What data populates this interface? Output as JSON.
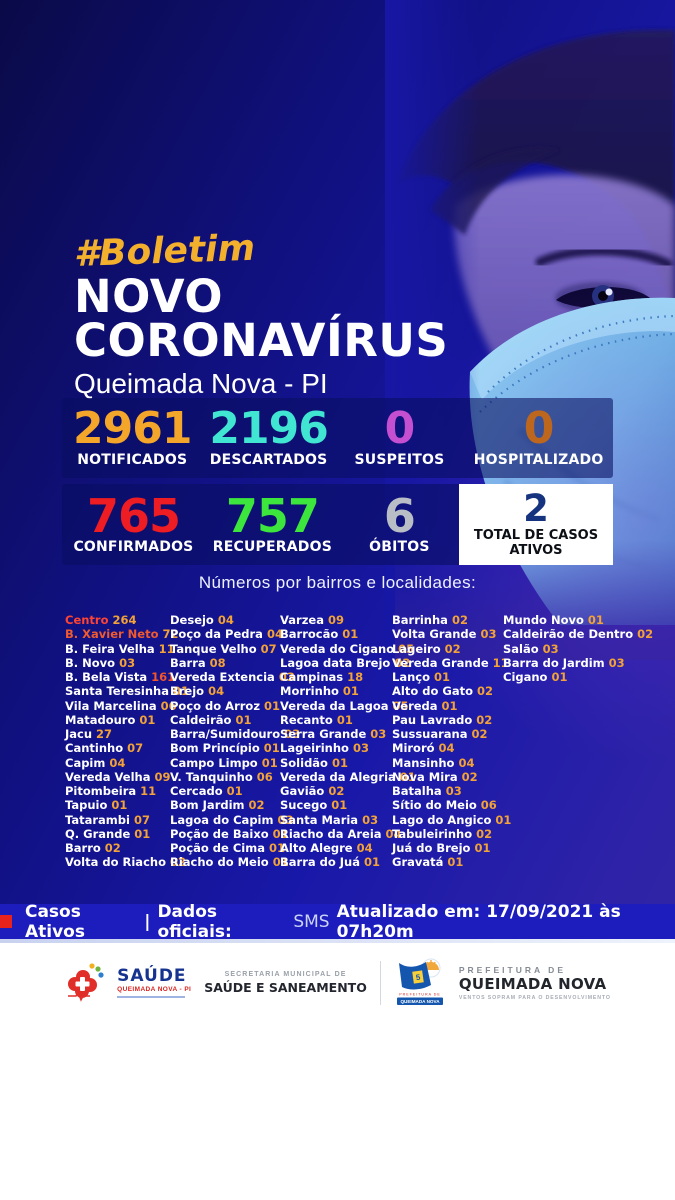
{
  "header": {
    "hashtag": "#Boletim",
    "title_line1": "NOVO",
    "title_line2": "CORONAVÍRUS",
    "subtitle": "Queimada Nova - PI"
  },
  "stats_row1": [
    {
      "value": "2961",
      "label": "NOTIFICADOS",
      "color": "#f4a62a"
    },
    {
      "value": "2196",
      "label": "DESCARTADOS",
      "color": "#41e6d2"
    },
    {
      "value": "0",
      "label": "SUSPEITOS",
      "color": "#c44fd0"
    },
    {
      "value": "0",
      "label": "HOSPITALIZADO",
      "color": "#bd671e"
    }
  ],
  "stats_row2": [
    {
      "value": "765",
      "label": "CONFIRMADOS",
      "color": "#ee1c23"
    },
    {
      "value": "757",
      "label": "RECUPERADOS",
      "color": "#3ce63c"
    },
    {
      "value": "6",
      "label": "ÓBITOS",
      "color": "#b9bec6"
    }
  ],
  "active_cases": {
    "value": "2",
    "label": "TOTAL DE CASOS ATIVOS",
    "value_color": "#16337f"
  },
  "list_title": "Números por bairros e localidades:",
  "bairros": {
    "number_color": "#f2a237",
    "columns": [
      [
        {
          "name": "Centro",
          "value": "264",
          "name_color": "#ff4433"
        },
        {
          "name": "B. Xavier Neto",
          "value": "72",
          "name_color": "#f05a2e"
        },
        {
          "name": "B. Feira Velha",
          "value": "11"
        },
        {
          "name": "B. Novo",
          "value": "03"
        },
        {
          "name": "B. Bela Vista",
          "value": "161",
          "num_color": "#f4562c"
        },
        {
          "name": "Santa Teresinha",
          "value": "01"
        },
        {
          "name": "Vila Marcelina",
          "value": "06"
        },
        {
          "name": "Matadouro",
          "value": "01"
        },
        {
          "name": "Jacu",
          "value": "27"
        },
        {
          "name": "Cantinho",
          "value": "07"
        },
        {
          "name": "Capim",
          "value": "04"
        },
        {
          "name": "Vereda Velha",
          "value": "09"
        },
        {
          "name": "Pitombeira",
          "value": "11"
        },
        {
          "name": "Tapuio",
          "value": "01"
        },
        {
          "name": "Tatarambi",
          "value": "07"
        },
        {
          "name": "Q. Grande",
          "value": "01"
        },
        {
          "name": "Barro",
          "value": "02"
        },
        {
          "name": "Volta do Riacho",
          "value": "02"
        }
      ],
      [
        {
          "name": "Desejo",
          "value": "04"
        },
        {
          "name": "Poço da Pedra",
          "value": "04"
        },
        {
          "name": "Tanque Velho",
          "value": "07"
        },
        {
          "name": "Barra",
          "value": "08"
        },
        {
          "name": "Vereda Extencia",
          "value": "03"
        },
        {
          "name": "Brejo",
          "value": "04"
        },
        {
          "name": "Poço do Arroz",
          "value": "01"
        },
        {
          "name": "Caldeirão",
          "value": "01"
        },
        {
          "name": "Barra/Sumidouro",
          "value": "03"
        },
        {
          "name": "Bom Princípio",
          "value": "01"
        },
        {
          "name": "Campo Limpo",
          "value": "01"
        },
        {
          "name": "V. Tanquinho",
          "value": "06"
        },
        {
          "name": "Cercado",
          "value": "01"
        },
        {
          "name": "Bom Jardim",
          "value": "02"
        },
        {
          "name": "Lagoa do Capim",
          "value": "03"
        },
        {
          "name": "Poção de Baixo",
          "value": "01"
        },
        {
          "name": "Poção de Cima",
          "value": "01"
        },
        {
          "name": "Riacho do Meio",
          "value": "01"
        }
      ],
      [
        {
          "name": "Varzea",
          "value": "09"
        },
        {
          "name": "Barrocão",
          "value": "01"
        },
        {
          "name": "Vereda do Cigano",
          "value": "05"
        },
        {
          "name": "Lagoa data Brejo",
          "value": "02"
        },
        {
          "name": "Campinas",
          "value": "18"
        },
        {
          "name": "Morrinho",
          "value": "01"
        },
        {
          "name": "Vereda da Lagoa",
          "value": "05"
        },
        {
          "name": "Recanto",
          "value": "01"
        },
        {
          "name": "Serra Grande",
          "value": "03"
        },
        {
          "name": "Lageirinho",
          "value": "03"
        },
        {
          "name": "Solidão",
          "value": "01"
        },
        {
          "name": "Vereda da Alegria",
          "value": "01"
        },
        {
          "name": "Gavião",
          "value": "02"
        },
        {
          "name": "Sucego",
          "value": "01"
        },
        {
          "name": "Santa Maria",
          "value": "03"
        },
        {
          "name": "Riacho da Areia",
          "value": "04"
        },
        {
          "name": "Alto Alegre",
          "value": "04"
        },
        {
          "name": "Barra do Juá",
          "value": "01"
        }
      ],
      [
        {
          "name": "Barrinha",
          "value": "02"
        },
        {
          "name": "Volta Grande",
          "value": "03"
        },
        {
          "name": "Lageiro",
          "value": "02"
        },
        {
          "name": "Vereda Grande",
          "value": "11"
        },
        {
          "name": "Lanço",
          "value": "01"
        },
        {
          "name": "Alto do Gato",
          "value": "02"
        },
        {
          "name": "Vereda",
          "value": "01"
        },
        {
          "name": "Pau Lavrado",
          "value": "02"
        },
        {
          "name": "Sussuarana",
          "value": "02"
        },
        {
          "name": "Miroró",
          "value": "04"
        },
        {
          "name": "Mansinho",
          "value": "04"
        },
        {
          "name": "Nova Mira",
          "value": "02"
        },
        {
          "name": "Batalha",
          "value": "03"
        },
        {
          "name": "Sítio do Meio",
          "value": "06"
        },
        {
          "name": "Lago do Angico",
          "value": "01"
        },
        {
          "name": "Tabuleirinho",
          "value": "02"
        },
        {
          "name": "Juá do Brejo",
          "value": "01"
        },
        {
          "name": "Gravatá",
          "value": "01"
        }
      ],
      [
        {
          "name": "Mundo Novo",
          "value": "01"
        },
        {
          "name": "Caldeirão de Dentro",
          "value": "02"
        },
        {
          "name": "Salão",
          "value": "03"
        },
        {
          "name": "Barra do Jardim",
          "value": "03"
        },
        {
          "name": "Cigano",
          "value": "01"
        }
      ]
    ]
  },
  "footer_bar": {
    "square_color": "#e8231d",
    "casos": "Casos Ativos",
    "sep": "|",
    "dados": "Dados oficiais:",
    "sms": "SMS",
    "atualizado": "Atualizado em: 17/09/2021 às 07h20m"
  },
  "logos": {
    "saude": {
      "title": "SAÚDE",
      "subtitle": "QUEIMADA NOVA - PI"
    },
    "secretaria": {
      "line1": "SECRETARIA MUNICIPAL DE",
      "line2": "SAÚDE E SANEAMENTO"
    },
    "prefeitura": {
      "line1": "PREFEITURA DE",
      "line2": "QUEIMADA NOVA",
      "tagline": "VENTOS SOPRAM PARA O DESENVOLVIMENTO",
      "flag_box": "QUEIMADA NOVA"
    }
  }
}
